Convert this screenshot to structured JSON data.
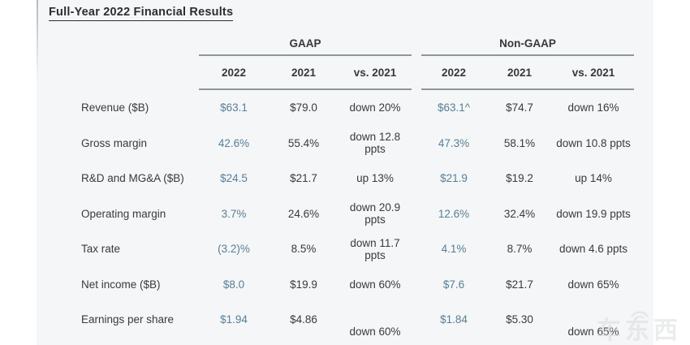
{
  "title": "Full-Year 2022 Financial Results",
  "table": {
    "groups": [
      {
        "label": "GAAP",
        "columns": [
          "2022",
          "2021",
          "vs. 2021"
        ]
      },
      {
        "label": "Non-GAAP",
        "columns": [
          "2022",
          "2021",
          "vs. 2021"
        ]
      }
    ],
    "rows": [
      {
        "label": "Revenue ($B)",
        "gaap": [
          "$63.1",
          "$79.0",
          "down 20%"
        ],
        "non_gaap": [
          "$63.1^",
          "$74.7",
          "down 16%"
        ]
      },
      {
        "label": "Gross margin",
        "gaap": [
          "42.6%",
          "55.4%",
          "down 12.8 ppts"
        ],
        "non_gaap": [
          "47.3%",
          "58.1%",
          "down 10.8 ppts"
        ]
      },
      {
        "label": "R&D and MG&A ($B)",
        "gaap": [
          "$24.5",
          "$21.7",
          "up 13%"
        ],
        "non_gaap": [
          "$21.9",
          "$19.2",
          "up 14%"
        ]
      },
      {
        "label": "Operating margin",
        "gaap": [
          "3.7%",
          "24.6%",
          "down 20.9 ppts"
        ],
        "non_gaap": [
          "12.6%",
          "32.4%",
          "down 19.9 ppts"
        ]
      },
      {
        "label": "Tax rate",
        "gaap": [
          "(3.2)%",
          "8.5%",
          "down 11.7 ppts"
        ],
        "non_gaap": [
          "4.1%",
          "8.7%",
          "down 4.6 ppts"
        ]
      },
      {
        "label": "Net income ($B)",
        "gaap": [
          "$8.0",
          "$19.9",
          "down 60%"
        ],
        "non_gaap": [
          "$7.6",
          "$21.7",
          "down 65%"
        ]
      },
      {
        "label": "Earnings per share",
        "gaap": [
          "$1.94",
          "$4.86",
          "down 60%"
        ],
        "non_gaap": [
          "$1.84",
          "$5.30",
          "down 65%"
        ],
        "vs_offset": true
      }
    ]
  },
  "colors": {
    "accent_2022_value": "#567f96",
    "rule": "#8c979e",
    "text": "#3a3a3c",
    "slide_background": "#f5f6f7"
  },
  "watermark": {
    "text": "车东西"
  }
}
